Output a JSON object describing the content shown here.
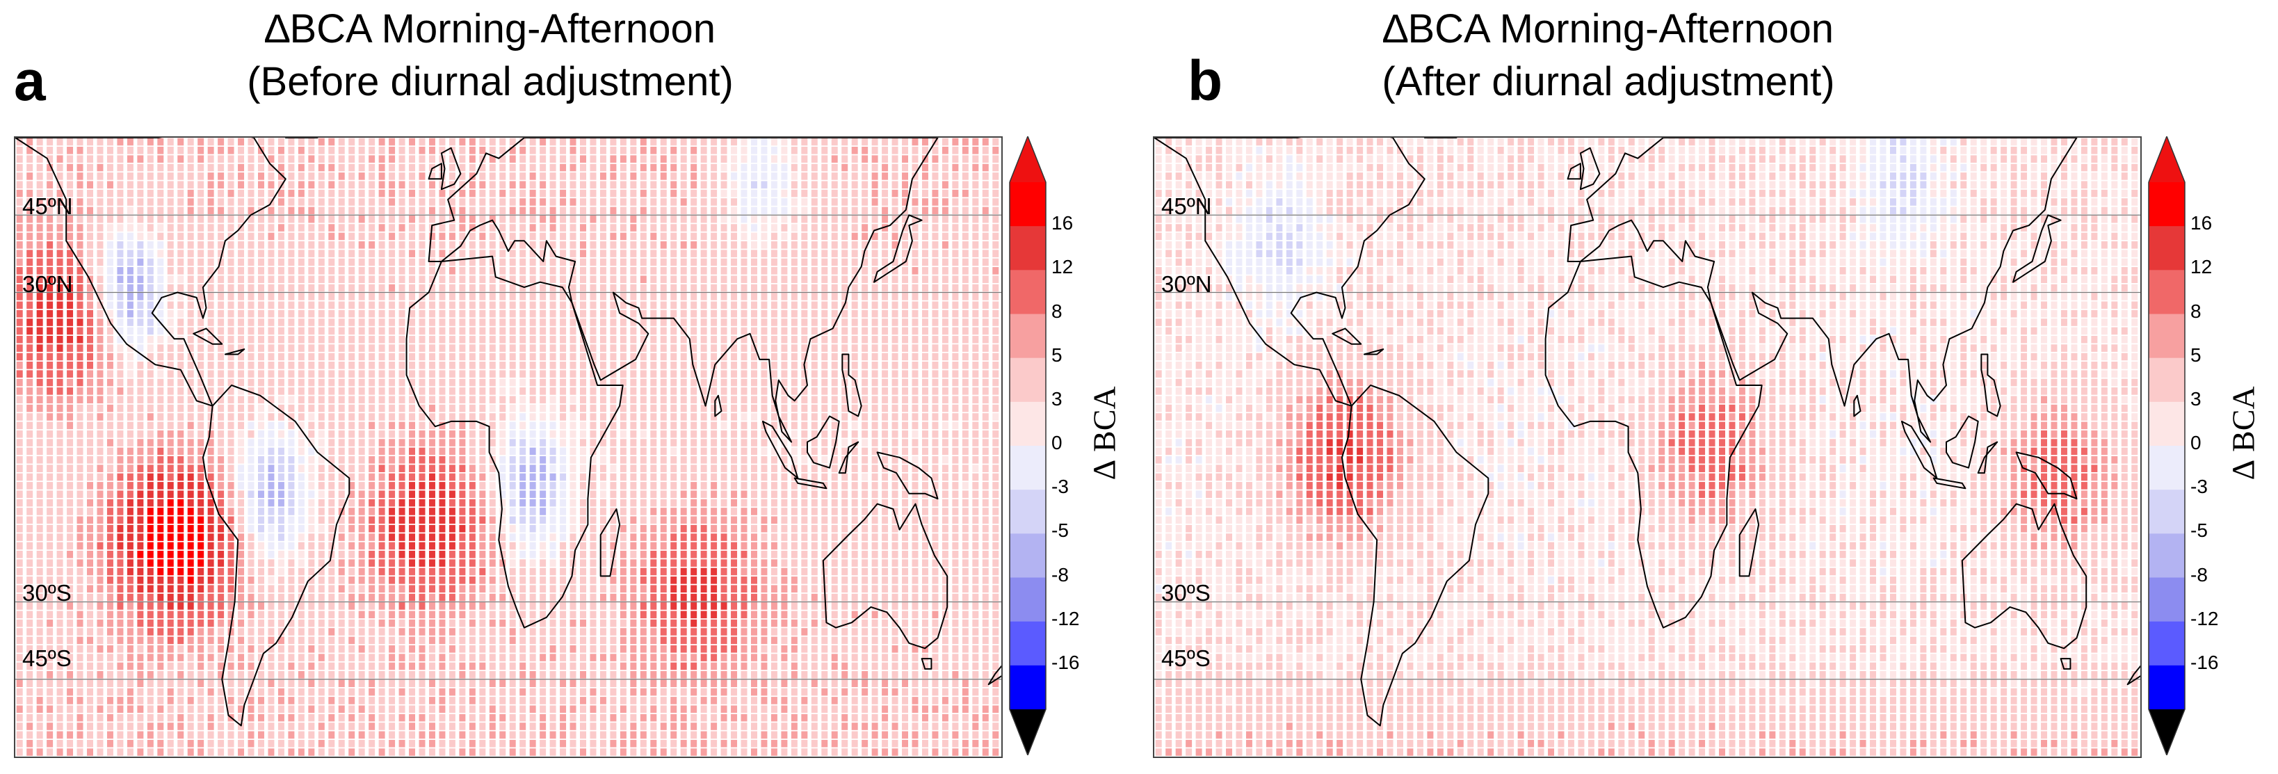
{
  "chart_data": [
    {
      "type": "heatmap",
      "panel_label": "a",
      "title_line1": "∆BCA  Morning-Afternoon",
      "title_line2": "(Before diurnal adjustment)",
      "lat_labels": [
        "45ºN",
        "30ºN",
        "30ºS",
        "45ºS"
      ],
      "lon_range": [
        -140,
        170
      ],
      "lat_range": [
        -60,
        60
      ],
      "colorbar": {
        "label": "∆ BCA",
        "ticks": [
          "16",
          "12",
          "8",
          "5",
          "3",
          "0",
          "-3",
          "-5",
          "-8",
          "-12",
          "-16"
        ]
      },
      "field": {
        "pattern": "before",
        "hotspots": [
          {
            "lon": -90,
            "lat": -18,
            "value": 14
          },
          {
            "lon": -125,
            "lat": 25,
            "value": 8
          },
          {
            "lon": -10,
            "lat": -15,
            "value": 9
          },
          {
            "lon": 75,
            "lat": -28,
            "value": 7
          }
        ],
        "coldspots": [
          {
            "lon": -60,
            "lat": -10,
            "value": -6
          },
          {
            "lon": 22,
            "lat": -8,
            "value": -6
          },
          {
            "lon": -105,
            "lat": 30,
            "value": -8
          },
          {
            "lon": 95,
            "lat": 52,
            "value": -4
          }
        ]
      }
    },
    {
      "type": "heatmap",
      "panel_label": "b",
      "title_line1": "∆BCA  Morning-Afternoon",
      "title_line2": "(After diurnal adjustment)",
      "lat_labels": [
        "45ºN",
        "30ºN",
        "30ºS",
        "45ºS"
      ],
      "lon_range": [
        -140,
        170
      ],
      "lat_range": [
        -60,
        60
      ],
      "colorbar": {
        "label": "∆ BCA",
        "ticks": [
          "16",
          "12",
          "8",
          "5",
          "3",
          "0",
          "-3",
          "-5",
          "-8",
          "-12",
          "-16"
        ]
      },
      "field": {
        "pattern": "after",
        "hotspots": [
          {
            "lon": -80,
            "lat": -2,
            "value": 8
          },
          {
            "lon": 35,
            "lat": 0,
            "value": 6
          },
          {
            "lon": 145,
            "lat": -5,
            "value": 6
          }
        ],
        "coldspots": [
          {
            "lon": 95,
            "lat": 52,
            "value": -3
          },
          {
            "lon": -100,
            "lat": 40,
            "value": -3
          }
        ]
      }
    }
  ],
  "colors": {
    "levels": [
      "#0000ff",
      "#5b5bff",
      "#8c8cf0",
      "#b3b3f2",
      "#d4d4f7",
      "#ececfb",
      "#fde6e6",
      "#fbcaca",
      "#f7a0a0",
      "#f06868",
      "#e63838",
      "#ff0000"
    ],
    "top_cap": "#ee1111",
    "bottom_cap": "#000000"
  }
}
